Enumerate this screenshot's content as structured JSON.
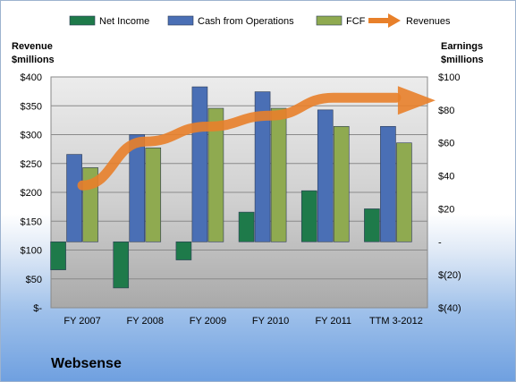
{
  "company": "Websense",
  "chart_data": {
    "type": "bar",
    "categories": [
      "FY 2007",
      "FY 2008",
      "FY 2009",
      "FY 2010",
      "FY 2011",
      "TTM 3-2012"
    ],
    "left_axis": {
      "title": "Revenue\n$millions",
      "range": [
        0,
        400
      ],
      "tick_values": [
        0,
        50,
        100,
        150,
        200,
        250,
        300,
        350,
        400
      ],
      "tick_labels": [
        "$-",
        "$50",
        "$100",
        "$150",
        "$200",
        "$250",
        "$300",
        "$350",
        "$400"
      ]
    },
    "right_axis": {
      "title": "Earnings\n$millions",
      "range": [
        -40,
        100
      ],
      "tick_values": [
        -40,
        -20,
        0,
        20,
        40,
        60,
        80,
        100
      ],
      "tick_labels": [
        "$(40)",
        "$(20)",
        "-",
        "$20",
        "$40",
        "$60",
        "$80",
        "$100"
      ]
    },
    "series": [
      {
        "name": "Net Income",
        "kind": "bar",
        "axis": "right",
        "color": "#1e7a4a",
        "values": [
          -17,
          -28,
          -11,
          18,
          31,
          20
        ]
      },
      {
        "name": "Cash from Operations",
        "kind": "bar",
        "axis": "right",
        "color": "#4a6fb5",
        "values": [
          53,
          65,
          94,
          91,
          80,
          70
        ]
      },
      {
        "name": "FCF",
        "kind": "bar",
        "axis": "right",
        "color": "#8faa50",
        "values": [
          45,
          57,
          81,
          81,
          70,
          60
        ]
      },
      {
        "name": "Revenues",
        "kind": "arrow-line",
        "axis": "left",
        "color": "#e8802a",
        "values": [
          212,
          288,
          314,
          333,
          364,
          364
        ]
      }
    ],
    "legend_position": "top",
    "grid": true
  }
}
